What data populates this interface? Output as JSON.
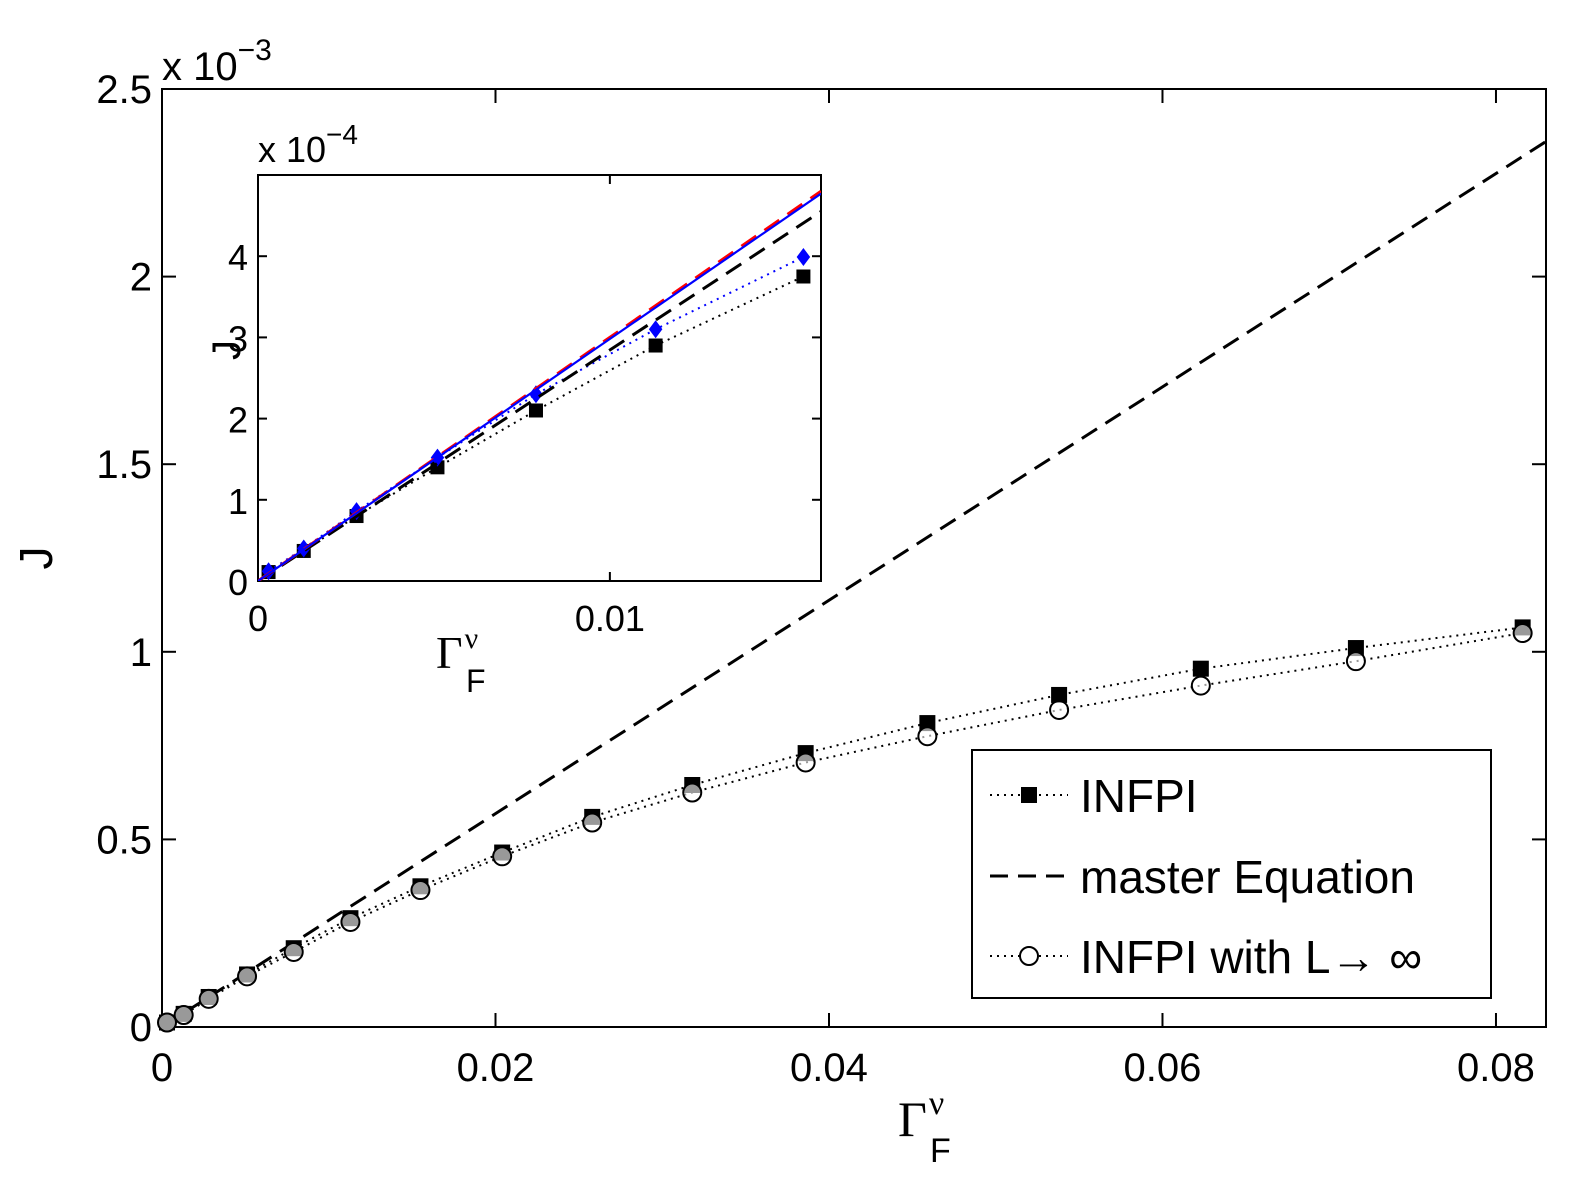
{
  "chart_data": [
    {
      "type": "line",
      "xlabel": {
        "symbol": "Γ",
        "sup": "ν",
        "sub": "F"
      },
      "ylabel": "J",
      "y_multiplier": {
        "base": "x 10",
        "exponent": "−3"
      },
      "xlim": [
        0,
        0.083
      ],
      "ylim": [
        0,
        2.5
      ],
      "xticks": [
        0,
        0.02,
        0.04,
        0.06,
        0.08
      ],
      "xtick_labels": [
        "0",
        "0.02",
        "0.04",
        "0.06",
        "0.08"
      ],
      "yticks": [
        0,
        0.5,
        1,
        1.5,
        2,
        2.5
      ],
      "ytick_labels": [
        "0",
        "0.5",
        "1",
        "1.5",
        "2",
        "2.5"
      ],
      "legend_position": "bottom-right",
      "series": [
        {
          "name": "INFPI",
          "style": "dotted-square",
          "color": "#000000",
          "x": [
            0.0003,
            0.0013,
            0.0028,
            0.0051,
            0.0079,
            0.0113,
            0.0155,
            0.0204,
            0.0258,
            0.0318,
            0.0386,
            0.0459,
            0.0538,
            0.0623,
            0.0716,
            0.0816
          ],
          "y": [
            0.012,
            0.035,
            0.08,
            0.14,
            0.21,
            0.29,
            0.375,
            0.465,
            0.56,
            0.645,
            0.73,
            0.81,
            0.885,
            0.955,
            1.01,
            1.065
          ]
        },
        {
          "name": "master Equation",
          "style": "dashed",
          "color": "#000000",
          "x": [
            0,
            0.083
          ],
          "y": [
            0,
            2.36
          ]
        },
        {
          "name": "INFPI with L→ ∞",
          "style": "dotted-circle",
          "color": "#000000",
          "x": [
            0.0003,
            0.0013,
            0.0028,
            0.0051,
            0.0079,
            0.0113,
            0.0155,
            0.0204,
            0.0258,
            0.0318,
            0.0386,
            0.0459,
            0.0538,
            0.0623,
            0.0716,
            0.0816
          ],
          "y": [
            0.012,
            0.032,
            0.075,
            0.135,
            0.2,
            0.28,
            0.365,
            0.455,
            0.545,
            0.625,
            0.705,
            0.775,
            0.845,
            0.91,
            0.975,
            1.05
          ]
        }
      ]
    },
    {
      "type": "line",
      "inset": true,
      "xlabel": {
        "symbol": "Γ",
        "sup": "ν",
        "sub": "F"
      },
      "ylabel": "J",
      "y_multiplier": {
        "base": "x 10",
        "exponent": "−4"
      },
      "xlim": [
        0,
        0.016
      ],
      "ylim": [
        0,
        5
      ],
      "xticks": [
        0,
        0.01
      ],
      "xtick_labels": [
        "0",
        "0.01"
      ],
      "yticks": [
        0,
        1,
        2,
        3,
        4
      ],
      "ytick_labels": [
        "0",
        "1",
        "2",
        "3",
        "4"
      ],
      "series": [
        {
          "style": "dotted-square",
          "color": "#000000",
          "x": [
            0.0003,
            0.0013,
            0.0028,
            0.0051,
            0.0079,
            0.0113,
            0.0155
          ],
          "y": [
            0.11,
            0.37,
            0.8,
            1.4,
            2.1,
            2.9,
            3.75
          ]
        },
        {
          "style": "dotted-diamond",
          "color": "#0000ff",
          "x": [
            0.0003,
            0.0013,
            0.0028,
            0.0051,
            0.0079,
            0.0113,
            0.0155
          ],
          "y": [
            0.12,
            0.4,
            0.86,
            1.52,
            2.3,
            3.1,
            3.99
          ]
        },
        {
          "style": "dashed",
          "color": "#000000",
          "x": [
            0,
            0.016
          ],
          "y": [
            0,
            4.55
          ]
        },
        {
          "style": "dashed",
          "color": "#ff0000",
          "x": [
            0,
            0.016
          ],
          "y": [
            0,
            4.8
          ]
        },
        {
          "style": "solid",
          "color": "#0000ff",
          "x": [
            0,
            0.016
          ],
          "y": [
            0,
            4.77
          ]
        }
      ]
    }
  ]
}
